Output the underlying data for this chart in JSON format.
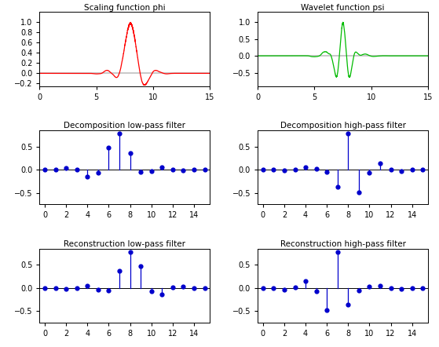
{
  "title_phi": "Scaling function phi",
  "title_psi": "Wavelet function psi",
  "title_dec_lo": "Decomposition low-pass filter",
  "title_dec_hi": "Decomposition high-pass filter",
  "title_rec_lo": "Reconstruction low-pass filter",
  "title_rec_hi": "Reconstruction high-pass filter",
  "phi_color": "#ff0000",
  "psi_color": "#00bb00",
  "filter_color": "#0000cc",
  "bg_color": "#ffffff",
  "title_fontsize": 7.5,
  "tick_fontsize": 7
}
